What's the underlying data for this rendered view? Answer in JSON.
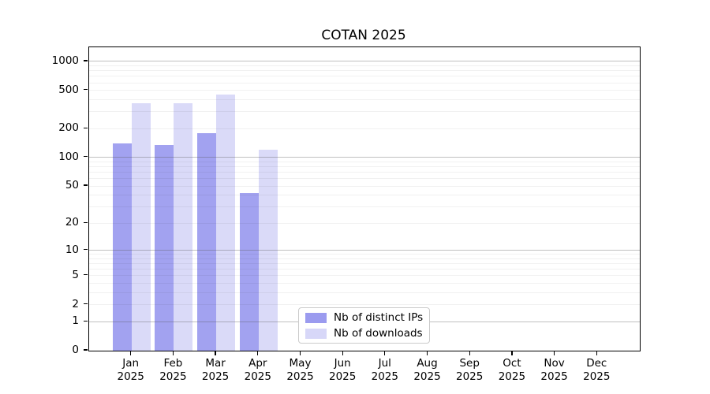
{
  "chart_data": {
    "type": "bar",
    "title": "COTAN 2025",
    "categories": [
      "Jan",
      "Feb",
      "Mar",
      "Apr",
      "May",
      "Jun",
      "Jul",
      "Aug",
      "Sep",
      "Oct",
      "Nov",
      "Dec"
    ],
    "x_tick_year": "2025",
    "series": [
      {
        "name": "Nb of distinct IPs",
        "color": "#9b9bef",
        "values": [
          140,
          134,
          180,
          42,
          null,
          null,
          null,
          null,
          null,
          null,
          null,
          null
        ]
      },
      {
        "name": "Nb of downloads",
        "color": "#d7d7f8",
        "values": [
          370,
          365,
          455,
          120,
          null,
          null,
          null,
          null,
          null,
          null,
          null,
          null
        ]
      }
    ],
    "yscale": "log1p",
    "ylim": [
      0,
      1400
    ],
    "y_ticks": [
      0,
      1,
      2,
      5,
      10,
      20,
      50,
      100,
      200,
      500,
      1000
    ],
    "major_gridlines": [
      1,
      10,
      100,
      1000
    ],
    "minor_gridline_decades": [
      1,
      10,
      100
    ],
    "grid": "horizontal",
    "legend_position": "lower center",
    "xlabel": "",
    "ylabel": ""
  }
}
